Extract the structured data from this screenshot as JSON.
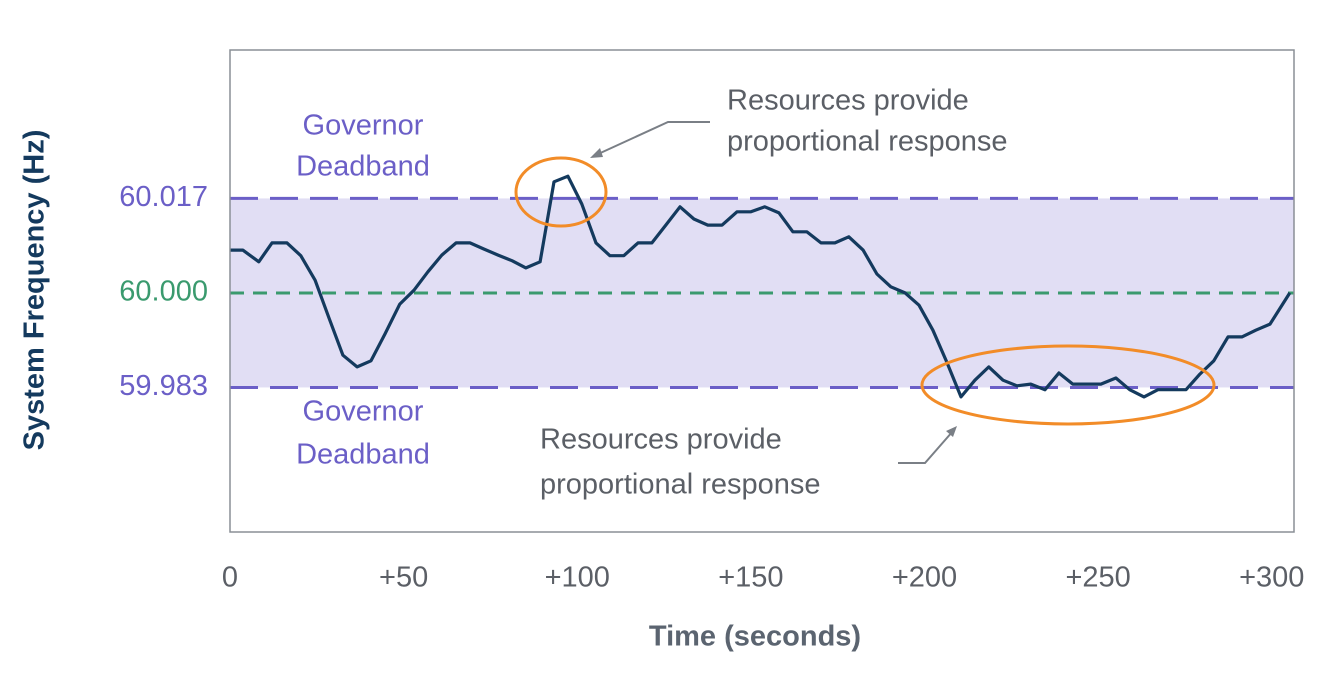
{
  "chart_data": {
    "type": "line",
    "ylabel": "System Frequency (Hz)",
    "xlabel": "Time (seconds)",
    "x": [
      0,
      3.7,
      8.3,
      12.1,
      16.4,
      20.4,
      24.5,
      28.5,
      32.5,
      36.6,
      40.6,
      44.6,
      48.9,
      53.0,
      57.0,
      61.0,
      65.1,
      69.1,
      73.1,
      77.2,
      81.2,
      85.2,
      89.3,
      93.3,
      97.3,
      101.3,
      105.4,
      109.4,
      113.4,
      117.5,
      121.5,
      125.5,
      129.6,
      133.6,
      137.6,
      141.7,
      146.0,
      150.0,
      154.0,
      158.1,
      162.1,
      166.1,
      170.2,
      174.2,
      178.2,
      182.3,
      186.3,
      190.3,
      194.4,
      198.4,
      202.4,
      206.4,
      210.5,
      214.5,
      218.5,
      222.6,
      226.6,
      230.6,
      234.7,
      238.7,
      242.7,
      246.8,
      250.8,
      255.1,
      259.1,
      263.2,
      267.2,
      271.2,
      275.3,
      279.3,
      283.3,
      287.4,
      291.4,
      295.4,
      299.5,
      305.2
    ],
    "series": [
      {
        "color": "#143a5e",
        "values": [
          60.0077,
          60.0077,
          60.0056,
          60.009,
          60.009,
          60.0067,
          60.0023,
          59.9955,
          59.9888,
          59.9867,
          59.9878,
          59.9926,
          59.998,
          60.0005,
          60.0038,
          60.0068,
          60.009,
          60.009,
          60.0079,
          60.0068,
          60.0058,
          60.0045,
          60.0056,
          60.02,
          60.021,
          60.016,
          60.009,
          60.0067,
          60.0067,
          60.009,
          60.009,
          60.0122,
          60.0155,
          60.0133,
          60.0122,
          60.0122,
          60.0146,
          60.0146,
          60.0155,
          60.0144,
          60.011,
          60.011,
          60.009,
          60.009,
          60.0101,
          60.0077,
          60.0034,
          60.0011,
          60.0,
          59.9978,
          59.9933,
          59.9876,
          59.9813,
          59.9843,
          59.9867,
          59.9843,
          59.9833,
          59.9836,
          59.9826,
          59.9856,
          59.9836,
          59.9836,
          59.9836,
          59.9847,
          59.9826,
          59.9813,
          59.9826,
          59.9826,
          59.9826,
          59.9854,
          59.9878,
          59.9921,
          59.9921,
          59.9933,
          59.9944,
          60.0
        ]
      }
    ],
    "xlim": [
      0,
      306.4
    ],
    "ylim": [
      59.957,
      60.0437
    ],
    "xticks": [
      0,
      {
        "value": 50,
        "label": "+50"
      },
      {
        "value": 100,
        "label": "+100"
      },
      {
        "value": 150,
        "label": "+150"
      },
      {
        "value": 200,
        "label": "+200"
      },
      {
        "value": 250,
        "label": "+250"
      },
      {
        "value": 300,
        "label": "+300"
      }
    ],
    "yticks": [
      59.983,
      {
        "value": 60,
        "label": "60.000"
      },
      60.017
    ],
    "ytick_colors": [
      "#6b5fc7",
      "#3a9a6e",
      "#6b5fc7"
    ],
    "band_color": "#e1def4",
    "grid": false,
    "annotations": [
      [
        "Governor",
        "Deadband"
      ],
      [
        "Governor",
        "Deadband"
      ],
      [
        "Resources provide",
        "proportional response"
      ],
      [
        "Resources provide",
        "proportional response"
      ]
    ]
  }
}
